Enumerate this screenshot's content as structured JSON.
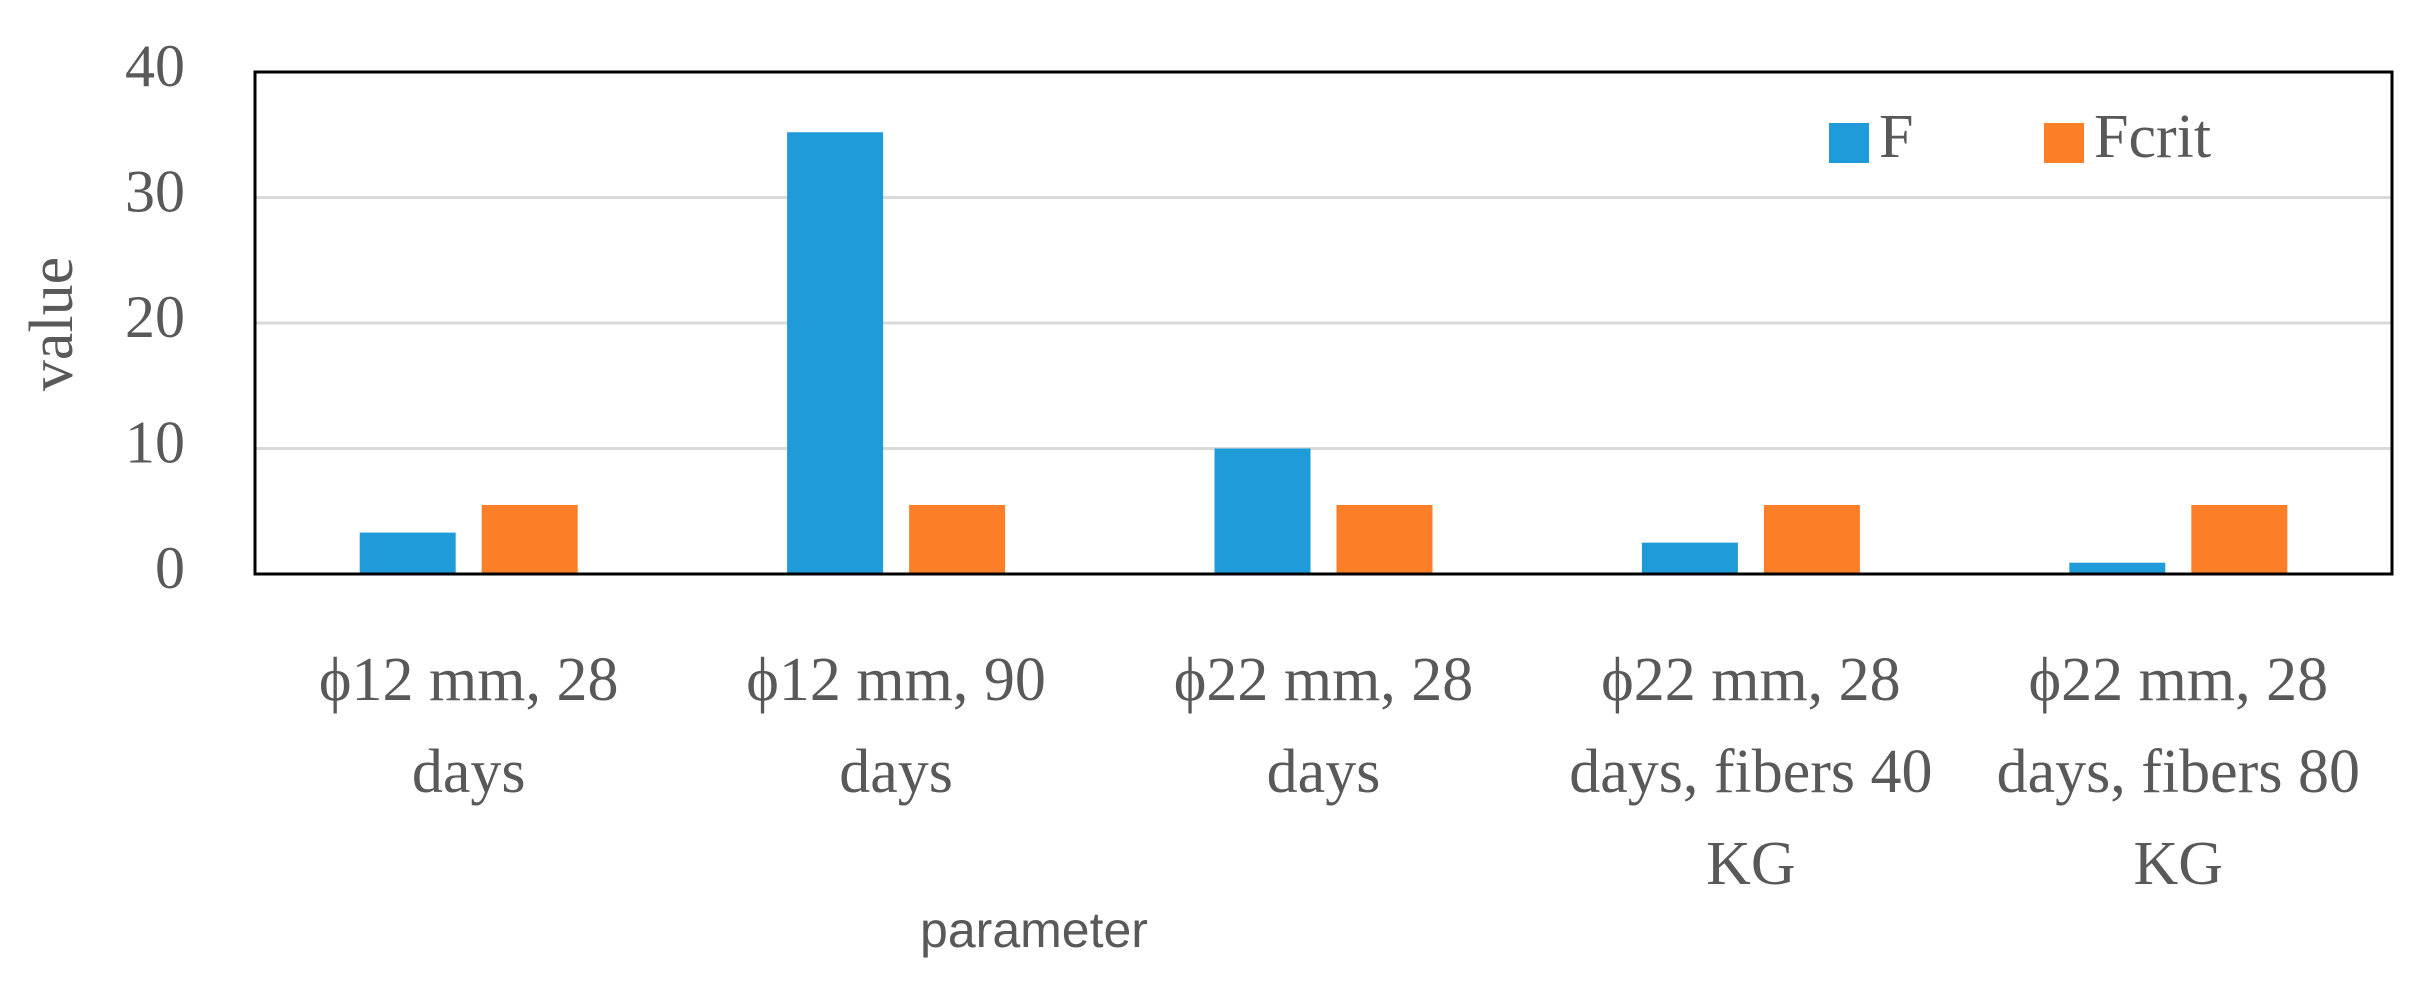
{
  "chart_data": {
    "type": "bar",
    "categories": [
      "ϕ12 mm, 28 days",
      "ϕ12 mm, 90 days",
      "ϕ22 mm, 28 days",
      "ϕ22 mm, 28 days, fibers 40 KG",
      "ϕ22 mm, 28 days, fibers 80 KG"
    ],
    "series": [
      {
        "name": "F",
        "color": "#1f9bd9",
        "values": [
          3.3,
          35.2,
          10,
          2.5,
          0.9
        ]
      },
      {
        "name": "Fcrit",
        "color": "#fc7f28",
        "values": [
          5.5,
          5.5,
          5.5,
          5.5,
          5.5
        ]
      }
    ],
    "x_label": "parameter",
    "y_label": "value",
    "ylim": [
      0,
      40
    ],
    "yticks": [
      0,
      10,
      20,
      30,
      40
    ],
    "grid": true,
    "legend": "top-right"
  }
}
